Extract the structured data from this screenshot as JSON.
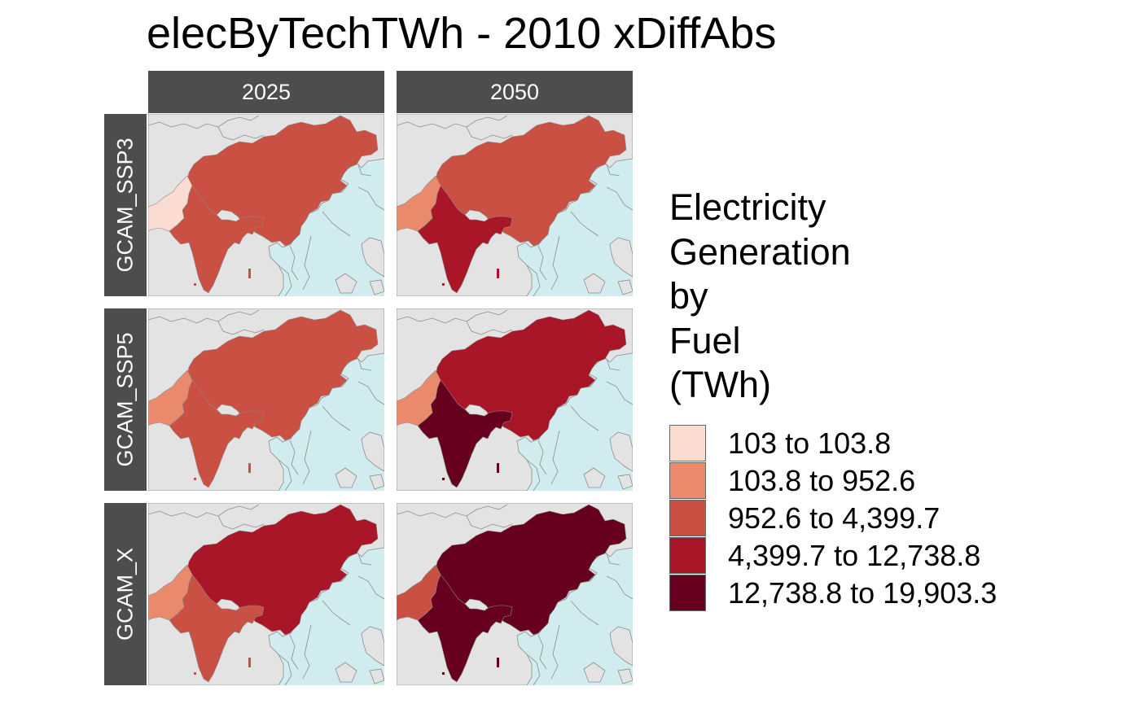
{
  "title": "elecByTechTWh - 2010 xDiffAbs",
  "columns": [
    "2025",
    "2050"
  ],
  "rows": [
    "GCAM_SSP3",
    "GCAM_SSP5",
    "GCAM_X"
  ],
  "legend": {
    "title_lines": [
      "Electricity",
      "Generation",
      "by",
      "Fuel",
      "(TWh)"
    ],
    "classes": [
      {
        "label": "103 to 103.8",
        "color": "#fbdcd1"
      },
      {
        "label": "103.8 to 952.6",
        "color": "#e98a6c"
      },
      {
        "label": "952.6 to 4,399.7",
        "color": "#ca5043"
      },
      {
        "label": "4,399.7 to 12,738.8",
        "color": "#a81628"
      },
      {
        "label": "12,738.8 to 19,903.3",
        "color": "#67001f"
      }
    ]
  },
  "colors": {
    "land": "#e3e3e3",
    "sea": "#d0ecee",
    "border": "#8c8c8c",
    "strip": "#4d4d4d"
  },
  "map_data": [
    {
      "row": "GCAM_SSP3",
      "column": "2025",
      "china": 2,
      "india": 2,
      "pakistan": 0
    },
    {
      "row": "GCAM_SSP3",
      "column": "2050",
      "china": 2,
      "india": 3,
      "pakistan": 1
    },
    {
      "row": "GCAM_SSP5",
      "column": "2025",
      "china": 2,
      "india": 2,
      "pakistan": 1
    },
    {
      "row": "GCAM_SSP5",
      "column": "2050",
      "china": 3,
      "india": 4,
      "pakistan": 1
    },
    {
      "row": "GCAM_X",
      "column": "2025",
      "china": 3,
      "india": 2,
      "pakistan": 1
    },
    {
      "row": "GCAM_X",
      "column": "2050",
      "china": 4,
      "india": 4,
      "pakistan": 2
    }
  ]
}
